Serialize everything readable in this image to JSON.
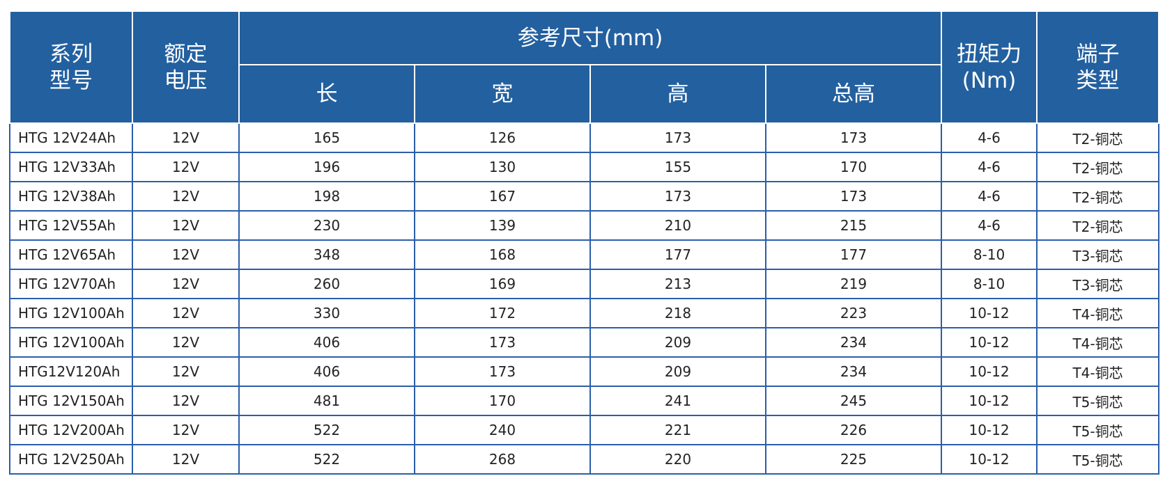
{
  "table": {
    "header": {
      "model": [
        "系列",
        "型号"
      ],
      "voltage": [
        "额定",
        "电压"
      ],
      "dimensions": "参考尺寸(mm)",
      "sub": [
        "长",
        "宽",
        "高",
        "总高"
      ],
      "torque": [
        "扭矩力",
        "(Nm)"
      ],
      "terminal": [
        "端子",
        "类型"
      ]
    },
    "rows": [
      [
        "HTG 12V24Ah",
        "12V",
        165,
        126,
        173,
        173,
        "4-6",
        "T2-铜芯"
      ],
      [
        "HTG 12V33Ah",
        "12V",
        196,
        130,
        155,
        170,
        "4-6",
        "T2-铜芯"
      ],
      [
        "HTG 12V38Ah",
        "12V",
        198,
        167,
        173,
        173,
        "4-6",
        "T2-铜芯"
      ],
      [
        "HTG 12V55Ah",
        "12V",
        230,
        139,
        210,
        215,
        "4-6",
        "T2-铜芯"
      ],
      [
        "HTG 12V65Ah",
        "12V",
        348,
        168,
        177,
        177,
        "8-10",
        "T3-铜芯"
      ],
      [
        "HTG 12V70Ah",
        "12V",
        260,
        169,
        213,
        219,
        "8-10",
        "T3-铜芯"
      ],
      [
        "HTG 12V100Ah",
        "12V",
        330,
        172,
        218,
        223,
        "10-12",
        "T4-铜芯"
      ],
      [
        "HTG 12V100Ah",
        "12V",
        406,
        173,
        209,
        234,
        "10-12",
        "T4-铜芯"
      ],
      [
        "HTG12V120Ah",
        "12V",
        406,
        173,
        209,
        234,
        "10-12",
        "T4-铜芯"
      ],
      [
        "HTG 12V150Ah",
        "12V",
        481,
        170,
        241,
        245,
        "10-12",
        "T5-铜芯"
      ],
      [
        "HTG 12V200Ah",
        "12V",
        522,
        240,
        221,
        226,
        "10-12",
        "T5-铜芯"
      ],
      [
        "HTG 12V250Ah",
        "12V",
        522,
        268,
        220,
        225,
        "10-12",
        "T5-铜芯"
      ]
    ]
  }
}
